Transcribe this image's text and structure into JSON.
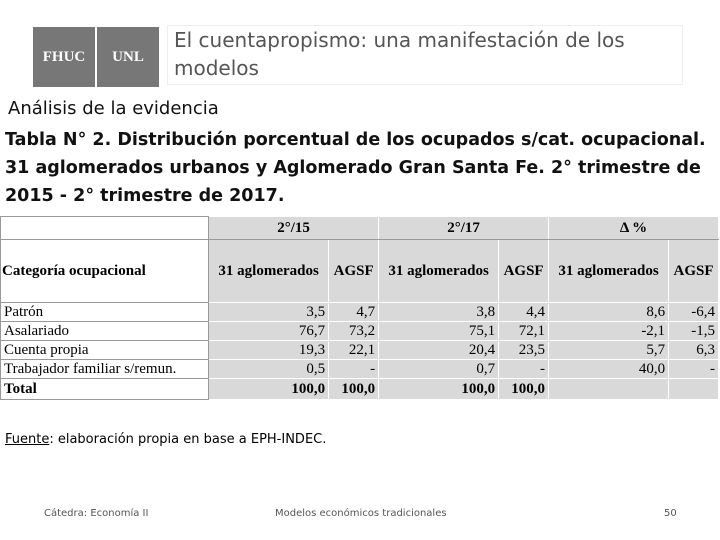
{
  "header": {
    "logos": [
      "FHUC",
      "UNL"
    ],
    "title": "El cuentapropismo: una manifestación de los modelos"
  },
  "subtitle": "Análisis de la evidencia",
  "table_title": "Tabla N° 2. Distribución porcentual de los ocupados s/cat. ocupacional. 31 aglomerados urbanos y Aglomerado Gran Santa Fe. 2° trimestre de 2015 - 2° trimestre de 2017.",
  "table": {
    "groups": [
      "2°/15",
      "2°/17",
      "Δ %"
    ],
    "columns": [
      "Categoría ocupacional",
      "31 aglomerados",
      "AGSF",
      "31 aglomerados",
      "AGSF",
      "31 aglomerados",
      "AGSF"
    ],
    "rows": [
      [
        "Patrón",
        "3,5",
        "4,7",
        "3,8",
        "4,4",
        "8,6",
        "-6,4"
      ],
      [
        "Asalariado",
        "76,7",
        "73,2",
        "75,1",
        "72,1",
        "-2,1",
        "-1,5"
      ],
      [
        "Cuenta propia",
        "19,3",
        "22,1",
        "20,4",
        "23,5",
        "5,7",
        "6,3"
      ],
      [
        "Trabajador familiar s/remun.",
        "0,5",
        "-",
        "0,7",
        "-",
        "40,0",
        "-"
      ],
      [
        "Total",
        "100,0",
        "100,0",
        "100,0",
        "100,0"
      ]
    ]
  },
  "source": {
    "label": "Fuente",
    "text": ": elaboración propia en base a EPH-INDEC."
  },
  "footer": {
    "left": "Cátedra: Economía II",
    "center": "Modelos económicos tradicionales",
    "page": "50"
  }
}
